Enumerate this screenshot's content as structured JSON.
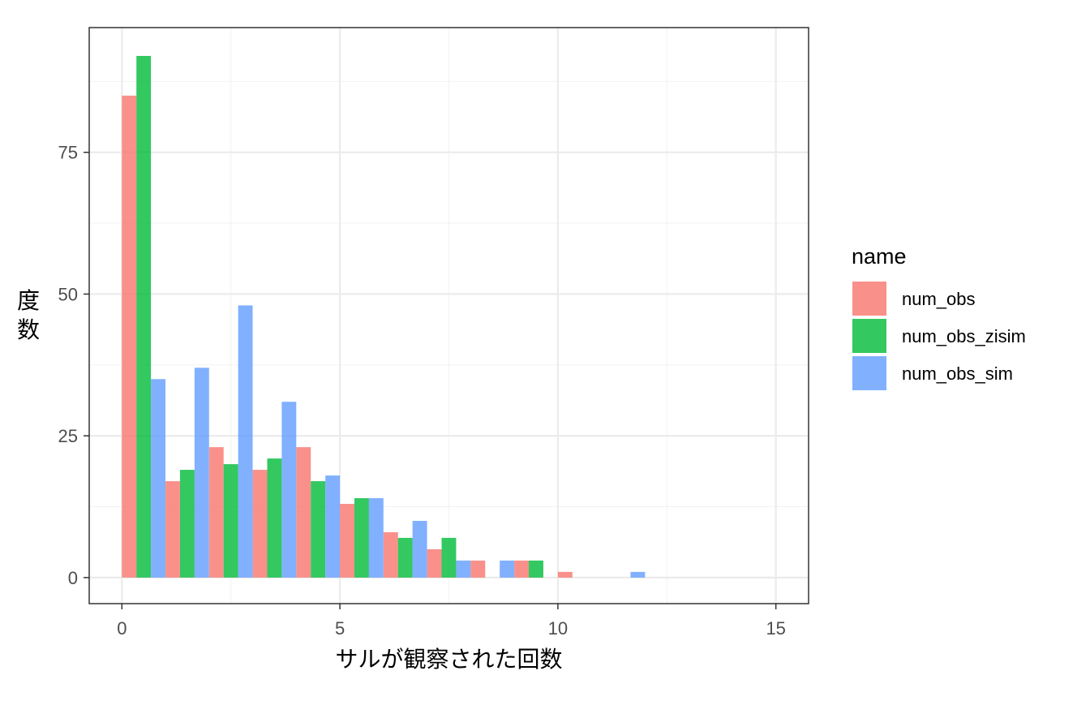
{
  "chart_data": {
    "type": "bar",
    "xlabel": "サルが観察された回数",
    "ylabel": "度数",
    "xlim": [
      -0.75,
      15.75
    ],
    "ylim": [
      -4.6,
      97
    ],
    "x_ticks": [
      0,
      5,
      10,
      15
    ],
    "y_ticks": [
      0,
      25,
      50,
      75
    ],
    "x_minor_ticks": [
      2.5,
      7.5,
      12.5
    ],
    "y_minor_ticks": [
      12.5,
      37.5,
      62.5,
      87.5
    ],
    "grid": true,
    "legend": {
      "title": "name",
      "position": "right"
    },
    "bar_width": 0.333,
    "series": [
      {
        "name": "num_obs",
        "color": "#F8766D",
        "offset": 0,
        "x": [
          0,
          1,
          2,
          3,
          4,
          5,
          6,
          7,
          8,
          9,
          10,
          11,
          12
        ],
        "values": [
          85,
          17,
          23,
          19,
          23,
          13,
          8,
          5,
          3,
          3,
          1,
          0,
          0
        ]
      },
      {
        "name": "num_obs_zisim",
        "color": "#00BA38",
        "offset": 1,
        "x": [
          0,
          1,
          2,
          3,
          4,
          5,
          6,
          7,
          8,
          9,
          10,
          11,
          12
        ],
        "values": [
          92,
          19,
          20,
          21,
          17,
          14,
          7,
          7,
          0,
          3,
          0,
          0,
          0
        ]
      },
      {
        "name": "num_obs_sim",
        "color": "#619CFF",
        "offset": 2,
        "x": [
          0,
          1,
          2,
          3,
          4,
          5,
          6,
          7,
          8,
          9,
          10,
          11,
          12
        ],
        "values": [
          35,
          37,
          48,
          31,
          18,
          14,
          10,
          3,
          3,
          0,
          0,
          1,
          0
        ]
      }
    ]
  }
}
